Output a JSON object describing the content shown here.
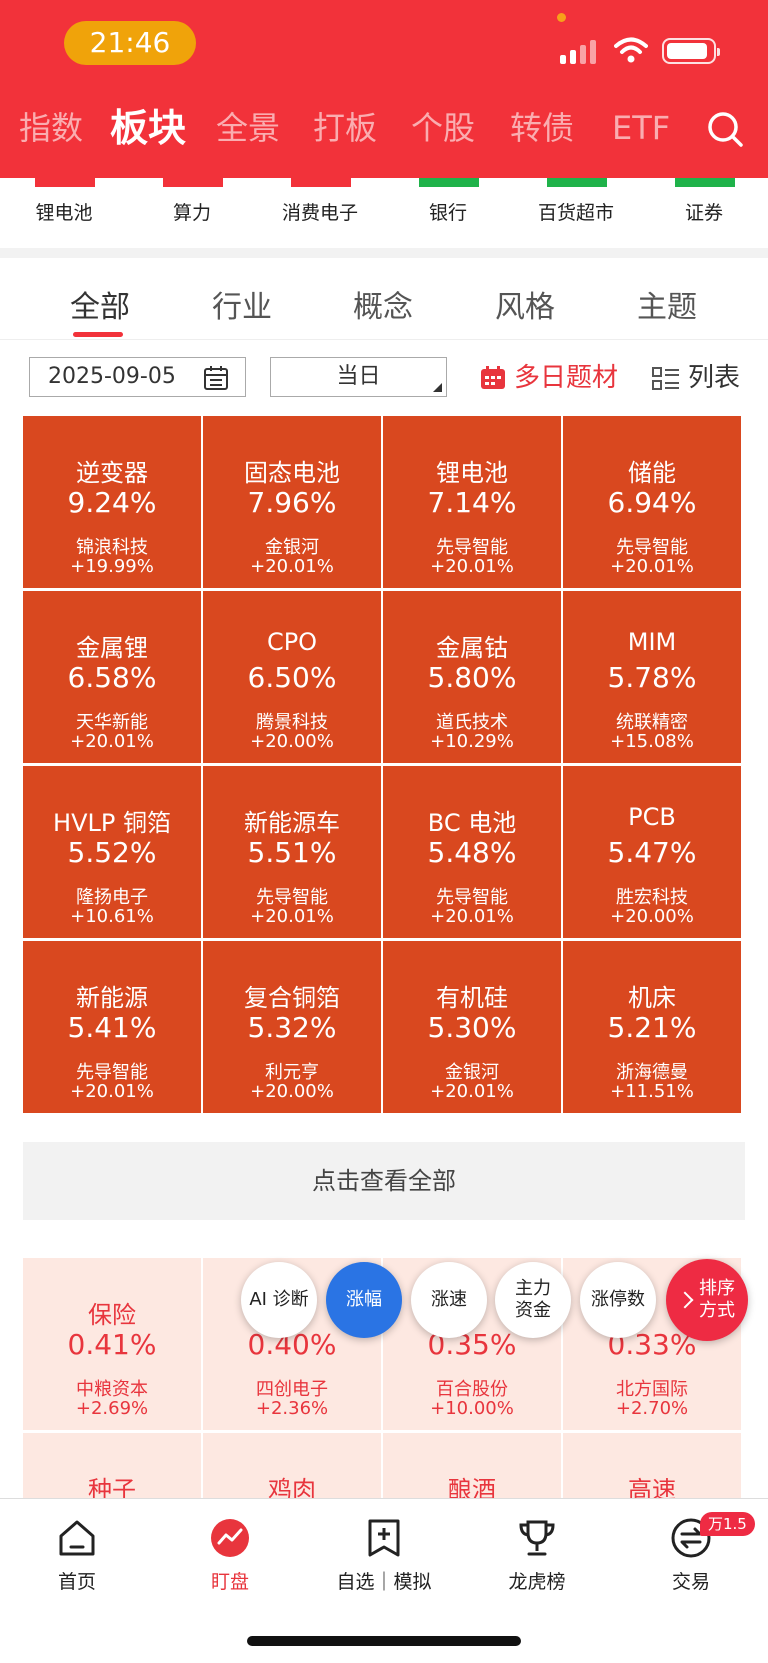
{
  "status_bar": {
    "time": "21:46"
  },
  "top_tabs": [
    "指数",
    "板块",
    "全景",
    "打板",
    "个股",
    "转债",
    "ETF"
  ],
  "top_tab_active": 1,
  "ticker": [
    {
      "label": "锂电池",
      "color": "#f2323a"
    },
    {
      "label": "算力",
      "color": "#f2323a"
    },
    {
      "label": "消费电子",
      "color": "#f2323a"
    },
    {
      "label": "银行",
      "color": "#1fb24a"
    },
    {
      "label": "百货超市",
      "color": "#1fb24a"
    },
    {
      "label": "证券",
      "color": "#1fb24a"
    }
  ],
  "category_tabs": [
    "全部",
    "行业",
    "概念",
    "风格",
    "主题"
  ],
  "filter": {
    "date": "2025-09-05",
    "period": "当日",
    "multi_day": "多日题材",
    "list_label": "列表"
  },
  "sectors": [
    {
      "name": "逆变器",
      "pct": "9.24%",
      "stock": "锦浪科技",
      "stock_pct": "+19.99%"
    },
    {
      "name": "固态电池",
      "pct": "7.96%",
      "stock": "金银河",
      "stock_pct": "+20.01%"
    },
    {
      "name": "锂电池",
      "pct": "7.14%",
      "stock": "先导智能",
      "stock_pct": "+20.01%"
    },
    {
      "name": "储能",
      "pct": "6.94%",
      "stock": "先导智能",
      "stock_pct": "+20.01%"
    },
    {
      "name": "金属锂",
      "pct": "6.58%",
      "stock": "天华新能",
      "stock_pct": "+20.01%"
    },
    {
      "name": "CPO",
      "pct": "6.50%",
      "stock": "腾景科技",
      "stock_pct": "+20.00%"
    },
    {
      "name": "金属钴",
      "pct": "5.80%",
      "stock": "道氏技术",
      "stock_pct": "+10.29%"
    },
    {
      "name": "MIM",
      "pct": "5.78%",
      "stock": "统联精密",
      "stock_pct": "+15.08%"
    },
    {
      "name": "HVLP 铜箔",
      "pct": "5.52%",
      "stock": "隆扬电子",
      "stock_pct": "+10.61%"
    },
    {
      "name": "新能源车",
      "pct": "5.51%",
      "stock": "先导智能",
      "stock_pct": "+20.01%"
    },
    {
      "name": "BC 电池",
      "pct": "5.48%",
      "stock": "先导智能",
      "stock_pct": "+20.01%"
    },
    {
      "name": "PCB",
      "pct": "5.47%",
      "stock": "胜宏科技",
      "stock_pct": "+20.00%"
    },
    {
      "name": "新能源",
      "pct": "5.41%",
      "stock": "先导智能",
      "stock_pct": "+20.01%"
    },
    {
      "name": "复合铜箔",
      "pct": "5.32%",
      "stock": "利元亨",
      "stock_pct": "+20.00%"
    },
    {
      "name": "有机硅",
      "pct": "5.30%",
      "stock": "金银河",
      "stock_pct": "+20.01%"
    },
    {
      "name": "机床",
      "pct": "5.21%",
      "stock": "浙海德曼",
      "stock_pct": "+11.51%"
    }
  ],
  "view_all": "点击查看全部",
  "lower_sectors": [
    {
      "name": "保险",
      "pct": "0.41%",
      "stock": "中粮资本",
      "stock_pct": "+2.69%"
    },
    {
      "name": "",
      "pct": "0.40%",
      "stock": "四创电子",
      "stock_pct": "+2.36%"
    },
    {
      "name": "",
      "pct": "0.35%",
      "stock": "百合股份",
      "stock_pct": "+10.00%"
    },
    {
      "name": "",
      "pct": "0.33%",
      "stock": "北方国际",
      "stock_pct": "+2.70%"
    },
    {
      "name": "种子",
      "pct": "",
      "stock": "",
      "stock_pct": ""
    },
    {
      "name": "鸡肉",
      "pct": "",
      "stock": "",
      "stock_pct": ""
    },
    {
      "name": "酿酒",
      "pct": "",
      "stock": "",
      "stock_pct": ""
    },
    {
      "name": "高速",
      "pct": "",
      "stock": "",
      "stock_pct": ""
    }
  ],
  "sort_buttons": {
    "ai": "AI 诊断",
    "rise": "涨幅",
    "speed": "涨速",
    "main_fund_1": "主力",
    "main_fund_2": "资金",
    "limit_count": "涨停数",
    "sort_1": "排序",
    "sort_2": "方式"
  },
  "bottom_nav": [
    {
      "label": "首页",
      "icon": "home-icon"
    },
    {
      "label": "盯盘",
      "icon": "watch-icon"
    },
    {
      "label": "自选｜模拟",
      "icon": "add-watchlist-icon"
    },
    {
      "label": "龙虎榜",
      "icon": "trophy-icon"
    },
    {
      "label": "交易",
      "icon": "trade-icon"
    }
  ],
  "bottom_nav_active": 1,
  "trade_badge": "万1.5"
}
